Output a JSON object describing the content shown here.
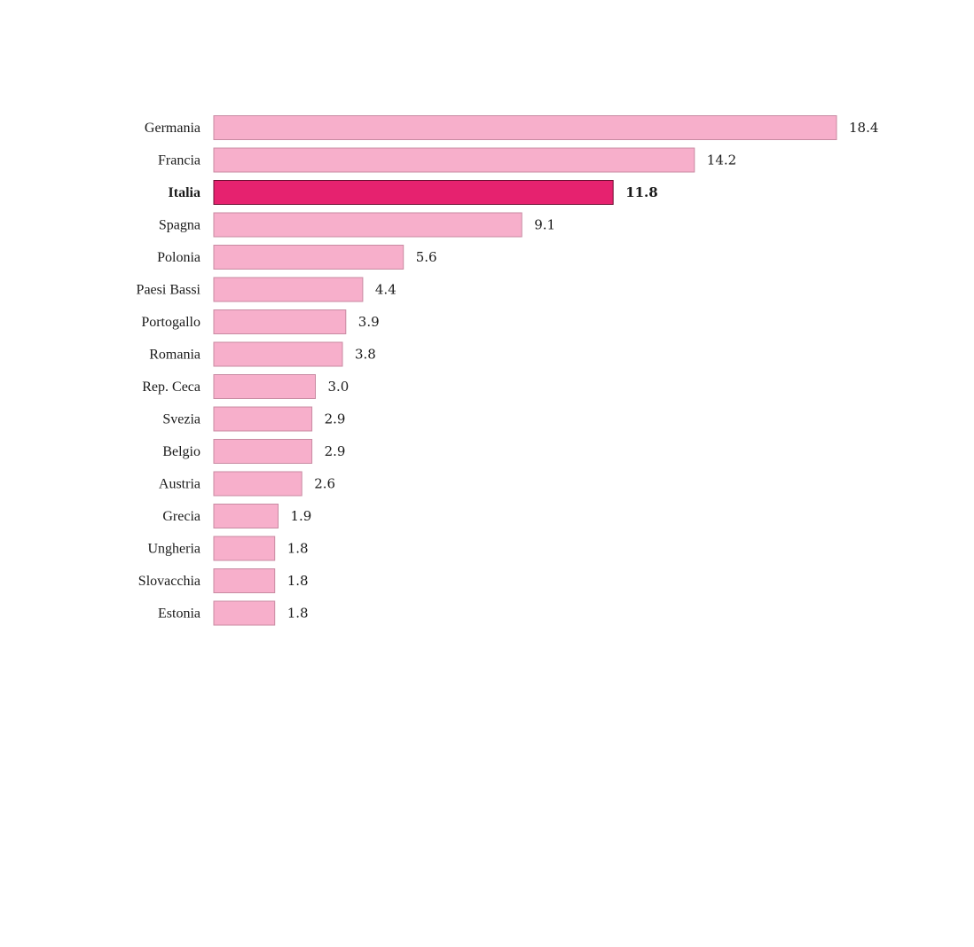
{
  "chart_data": {
    "type": "bar",
    "orientation": "horizontal",
    "categories": [
      "Germania",
      "Francia",
      "Italia",
      "Spagna",
      "Polonia",
      "Paesi Bassi",
      "Portogallo",
      "Romania",
      "Rep. Ceca",
      "Svezia",
      "Belgio",
      "Austria",
      "Grecia",
      "Ungheria",
      "Slovacchia",
      "Estonia"
    ],
    "values": [
      18.4,
      14.2,
      11.8,
      9.1,
      5.6,
      4.4,
      3.9,
      3.8,
      3.0,
      2.9,
      2.9,
      2.6,
      1.9,
      1.8,
      1.8,
      1.8
    ],
    "value_labels": [
      "18.4",
      "14.2",
      "11.8",
      "9.1",
      "5.6",
      "4.4",
      "3.9",
      "3.8",
      "3.0",
      "2.9",
      "2.9",
      "2.6",
      "1.9",
      "1.8",
      "1.8",
      "1.8"
    ],
    "highlight": "Italia",
    "xlim": [
      0,
      18.4
    ],
    "grid": false,
    "colors": {
      "bar": "#f7afcb",
      "bar_stroke": "#c88aa2",
      "highlight": "#e6226f",
      "highlight_stroke": "#6e0f33"
    }
  }
}
